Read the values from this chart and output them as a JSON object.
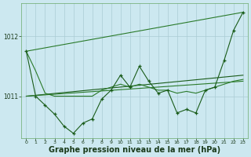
{
  "bg_color": "#cce8f0",
  "grid_color": "#aaccd4",
  "line_color_dark": "#1a5c1a",
  "line_color_mid": "#2a7a2a",
  "xlabel": "Graphe pression niveau de la mer (hPa)",
  "xlabel_fontsize": 7,
  "ylabel_ticks": [
    1011,
    1012
  ],
  "xlim": [
    -0.5,
    23.5
  ],
  "ylim": [
    1010.3,
    1012.55
  ],
  "xticks": [
    0,
    1,
    2,
    3,
    4,
    5,
    6,
    7,
    8,
    9,
    10,
    11,
    12,
    13,
    14,
    15,
    16,
    17,
    18,
    19,
    20,
    21,
    22,
    23
  ],
  "series_jagged_x": [
    0,
    1,
    2,
    3,
    4,
    5,
    6,
    7,
    8,
    9,
    10,
    11,
    12,
    13,
    14,
    15,
    16,
    17,
    18,
    19,
    20,
    21,
    22,
    23
  ],
  "series_jagged_y": [
    1011.75,
    1011.0,
    1010.85,
    1010.7,
    1010.5,
    1010.38,
    1010.55,
    1010.62,
    1010.95,
    1011.1,
    1011.35,
    1011.15,
    1011.5,
    1011.25,
    1011.05,
    1011.1,
    1010.72,
    1010.78,
    1010.72,
    1011.1,
    1011.15,
    1011.6,
    1012.1,
    1012.4
  ],
  "series_smooth_x": [
    0,
    1,
    2,
    3,
    4,
    5,
    6,
    7,
    8,
    9,
    10,
    11,
    12,
    13,
    14,
    15,
    16,
    17,
    18,
    19,
    20,
    21,
    22,
    23
  ],
  "series_smooth_y": [
    1011.75,
    1011.42,
    1011.05,
    1011.0,
    1011.0,
    1011.0,
    1011.0,
    1011.0,
    1011.1,
    1011.15,
    1011.2,
    1011.15,
    1011.2,
    1011.15,
    1011.1,
    1011.1,
    1011.05,
    1011.08,
    1011.05,
    1011.1,
    1011.15,
    1011.2,
    1011.25,
    1011.28
  ],
  "series_line1_x": [
    0,
    23
  ],
  "series_line1_y": [
    1011.0,
    1011.35
  ],
  "series_line2_x": [
    0,
    23
  ],
  "series_line2_y": [
    1011.0,
    1011.25
  ],
  "series_trend_x": [
    0,
    23
  ],
  "series_trend_y": [
    1011.75,
    1012.4
  ]
}
